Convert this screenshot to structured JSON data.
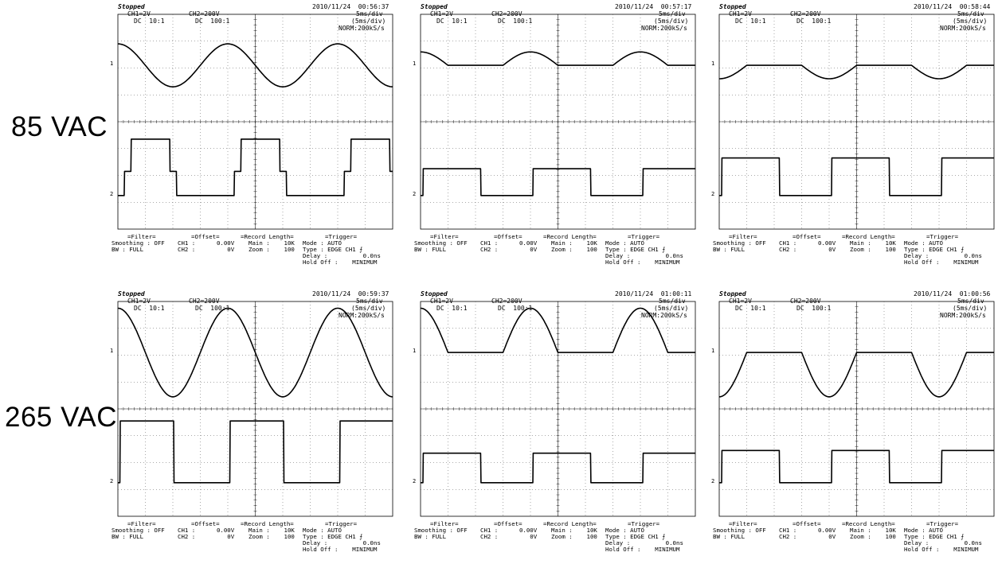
{
  "row_labels": [
    "85 VAC",
    "265 VAC"
  ],
  "panels": [
    {
      "status": "Stopped",
      "timestamp": "2010/11/24  00:56:37",
      "ch1": "CH1=2V",
      "ch1_cpl": "DC  10:1",
      "ch2": "CH2=200V",
      "ch2_cpl": "DC  100:1",
      "tdiv": "5ms/div",
      "tdiv2": "(5ms/div)",
      "mode": "NORM:200kS/s"
    },
    {
      "status": "Stopped",
      "timestamp": "2010/11/24  00:57:17",
      "ch1": "CH1=2V",
      "ch1_cpl": "DC  10:1",
      "ch2": "CH2=200V",
      "ch2_cpl": "DC  100:1",
      "tdiv": "5ms/div",
      "tdiv2": "(5ms/div)",
      "mode": "NORM:200kS/s"
    },
    {
      "status": "Stopped",
      "timestamp": "2010/11/24  00:58:44",
      "ch1": "CH1=2V",
      "ch1_cpl": "DC  10:1",
      "ch2": "CH2=200V",
      "ch2_cpl": "DC  100:1",
      "tdiv": "5ms/div",
      "tdiv2": "(5ms/div)",
      "mode": "NORM:200kS/s"
    },
    {
      "status": "Stopped",
      "timestamp": "2010/11/24  00:59:37",
      "ch1": "CH1=2V",
      "ch1_cpl": "DC  10:1",
      "ch2": "CH2=200V",
      "ch2_cpl": "DC  100:1",
      "tdiv": "5ms/div",
      "tdiv2": "(5ms/div)",
      "mode": "NORM:200kS/s"
    },
    {
      "status": "Stopped",
      "timestamp": "2010/11/24  01:00:11",
      "ch1": "CH1=2V",
      "ch1_cpl": "DC  10:1",
      "ch2": "CH2=200V",
      "ch2_cpl": "DC  100:1",
      "tdiv": "5ms/div",
      "tdiv2": "(5ms/div)",
      "mode": "NORM:200kS/s"
    },
    {
      "status": "Stopped",
      "timestamp": "2010/11/24  01:00:56",
      "ch1": "CH1=2V",
      "ch1_cpl": "DC  10:1",
      "ch2": "CH2=200V",
      "ch2_cpl": "DC  100:1",
      "tdiv": "5ms/div",
      "tdiv2": "(5ms/div)",
      "mode": "NORM:200kS/s"
    }
  ],
  "bottom_text": {
    "filter_hdr": "=Filter=",
    "smoothing": "Smoothing : OFF",
    "bw": "BW : FULL",
    "offset_hdr": "=Offset=",
    "ch1_offset": "CH1 :      0.00V",
    "ch2_offset": "CH2 :         0V",
    "rec_hdr": "=Record Length=",
    "main": "Main :    10K",
    "zoom": "Zoom :    100",
    "trig_hdr": "=Trigger=",
    "mode": "Mode : AUTO",
    "type": "Type : EDGE CH1 ⨍",
    "delay": "Delay :          0.0ns",
    "holdoff": "Hold Off :    MINIMUM"
  },
  "markers": {
    "ch1": "1",
    "ch2": "2"
  },
  "chart_data": [
    {
      "type": "line",
      "title": "85 VAC",
      "x_unit": "ms",
      "x_range": [
        0,
        50
      ],
      "divisions": [
        10,
        8
      ],
      "series": [
        {
          "trace": "upper",
          "shape": "sine",
          "period_ms": 20,
          "phase_ms": 0,
          "amplitude_div": 0.8,
          "offset_div": 0,
          "clip_low_div": null,
          "clip_high_div": null
        },
        {
          "trace": "lower",
          "shape": "square",
          "period_ms": 20,
          "high_start_ms": 1.2,
          "high_end_ms": 10.7,
          "high_div": 2.1,
          "low_div": 0,
          "shoulder_div": 0.9,
          "shoulder_ms": 0.4
        }
      ]
    },
    {
      "type": "line",
      "title": "85 VAC",
      "x_unit": "ms",
      "x_range": [
        0,
        50
      ],
      "divisions": [
        10,
        8
      ],
      "series": [
        {
          "trace": "upper",
          "shape": "sine",
          "period_ms": 20,
          "phase_ms": 0,
          "amplitude_div": 0.5,
          "offset_div": 0,
          "clip_low_div": 0.0,
          "clip_high_div": null
        },
        {
          "trace": "lower",
          "shape": "square",
          "period_ms": 20,
          "high_start_ms": 0.5,
          "high_end_ms": 11.0,
          "high_div": 1.0,
          "low_div": 0,
          "shoulder_div": null,
          "shoulder_ms": 0
        }
      ]
    },
    {
      "type": "line",
      "title": "85 VAC",
      "x_unit": "ms",
      "x_range": [
        0,
        50
      ],
      "divisions": [
        10,
        8
      ],
      "series": [
        {
          "trace": "upper",
          "shape": "sine",
          "period_ms": 20,
          "phase_ms": 10,
          "amplitude_div": 0.5,
          "offset_div": 0,
          "clip_low_div": null,
          "clip_high_div": 0.0
        },
        {
          "trace": "lower",
          "shape": "square",
          "period_ms": 20,
          "high_start_ms": 0.5,
          "high_end_ms": 11.0,
          "high_div": 1.4,
          "low_div": 0,
          "shoulder_div": null,
          "shoulder_ms": 0
        }
      ]
    },
    {
      "type": "line",
      "title": "265 VAC",
      "x_unit": "ms",
      "x_range": [
        0,
        50
      ],
      "divisions": [
        10,
        8
      ],
      "series": [
        {
          "trace": "upper",
          "shape": "sine",
          "period_ms": 20,
          "phase_ms": 0,
          "amplitude_div": 1.65,
          "offset_div": 0,
          "clip_low_div": null,
          "clip_high_div": null
        },
        {
          "trace": "lower",
          "shape": "square",
          "period_ms": 20,
          "high_start_ms": 0.4,
          "high_end_ms": 10.2,
          "high_div": 2.3,
          "low_div": 0,
          "shoulder_div": null,
          "shoulder_ms": 0
        }
      ]
    },
    {
      "type": "line",
      "title": "265 VAC",
      "x_unit": "ms",
      "x_range": [
        0,
        50
      ],
      "divisions": [
        10,
        8
      ],
      "series": [
        {
          "trace": "upper",
          "shape": "sine",
          "period_ms": 20,
          "phase_ms": 0,
          "amplitude_div": 1.65,
          "offset_div": 0,
          "clip_low_div": 0.0,
          "clip_high_div": null
        },
        {
          "trace": "lower",
          "shape": "square",
          "period_ms": 20,
          "high_start_ms": 0.5,
          "high_end_ms": 11.0,
          "high_div": 1.1,
          "low_div": 0,
          "shoulder_div": null,
          "shoulder_ms": 0
        }
      ]
    },
    {
      "type": "line",
      "title": "265 VAC",
      "x_unit": "ms",
      "x_range": [
        0,
        50
      ],
      "divisions": [
        10,
        8
      ],
      "series": [
        {
          "trace": "upper",
          "shape": "sine",
          "period_ms": 20,
          "phase_ms": 10,
          "amplitude_div": 1.65,
          "offset_div": 0,
          "clip_low_div": null,
          "clip_high_div": 0.0
        },
        {
          "trace": "lower",
          "shape": "square",
          "period_ms": 20,
          "high_start_ms": 0.5,
          "high_end_ms": 11.0,
          "high_div": 1.2,
          "low_div": 0,
          "shoulder_div": null,
          "shoulder_ms": 0
        }
      ]
    }
  ]
}
